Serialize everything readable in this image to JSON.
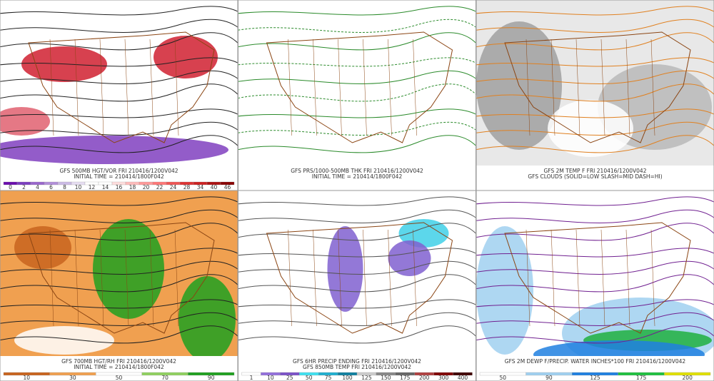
{
  "panels": [
    {
      "caption": [
        "GFS 500MB HGT/VOR FRI 210416/1200V042",
        "INITIAL TIME = 210414/1800F042"
      ],
      "scale": [
        0,
        2,
        4,
        6,
        8,
        10,
        12,
        14,
        16,
        18,
        20,
        22,
        24,
        28,
        34,
        40,
        46
      ]
    },
    {
      "caption": [
        "GFS PRS/1000-500MB THK FRI 210416/1200V042",
        "INITIAL TIME = 210414/1800F042"
      ],
      "scale": []
    },
    {
      "caption": [
        "GFS 2M TEMP F FRI 210416/1200V042",
        "GFS CLOUDS (SOLID=LOW SLASH=MID DASH=HI)"
      ],
      "scale": []
    },
    {
      "caption": [
        "GFS 700MB HGT/RH FRI 210416/1200V042",
        "INITIAL TIME = 210414/1800F042"
      ],
      "scale": [
        10,
        30,
        50,
        70,
        90
      ]
    },
    {
      "caption": [
        "GFS 6HR PRECIP ENDING FRI 210416/1200V042",
        "GFS 850MB TEMP FRI 210416/1200V042"
      ],
      "scale": [
        1,
        10,
        25,
        50,
        75,
        100,
        125,
        150,
        175,
        200,
        300,
        400
      ]
    },
    {
      "caption": [
        "GFS 2M DEWP F/PRECIP. WATER INCHES*100 FRI 210416/1200V042"
      ],
      "scale": [
        50,
        90,
        125,
        175,
        200
      ]
    }
  ]
}
